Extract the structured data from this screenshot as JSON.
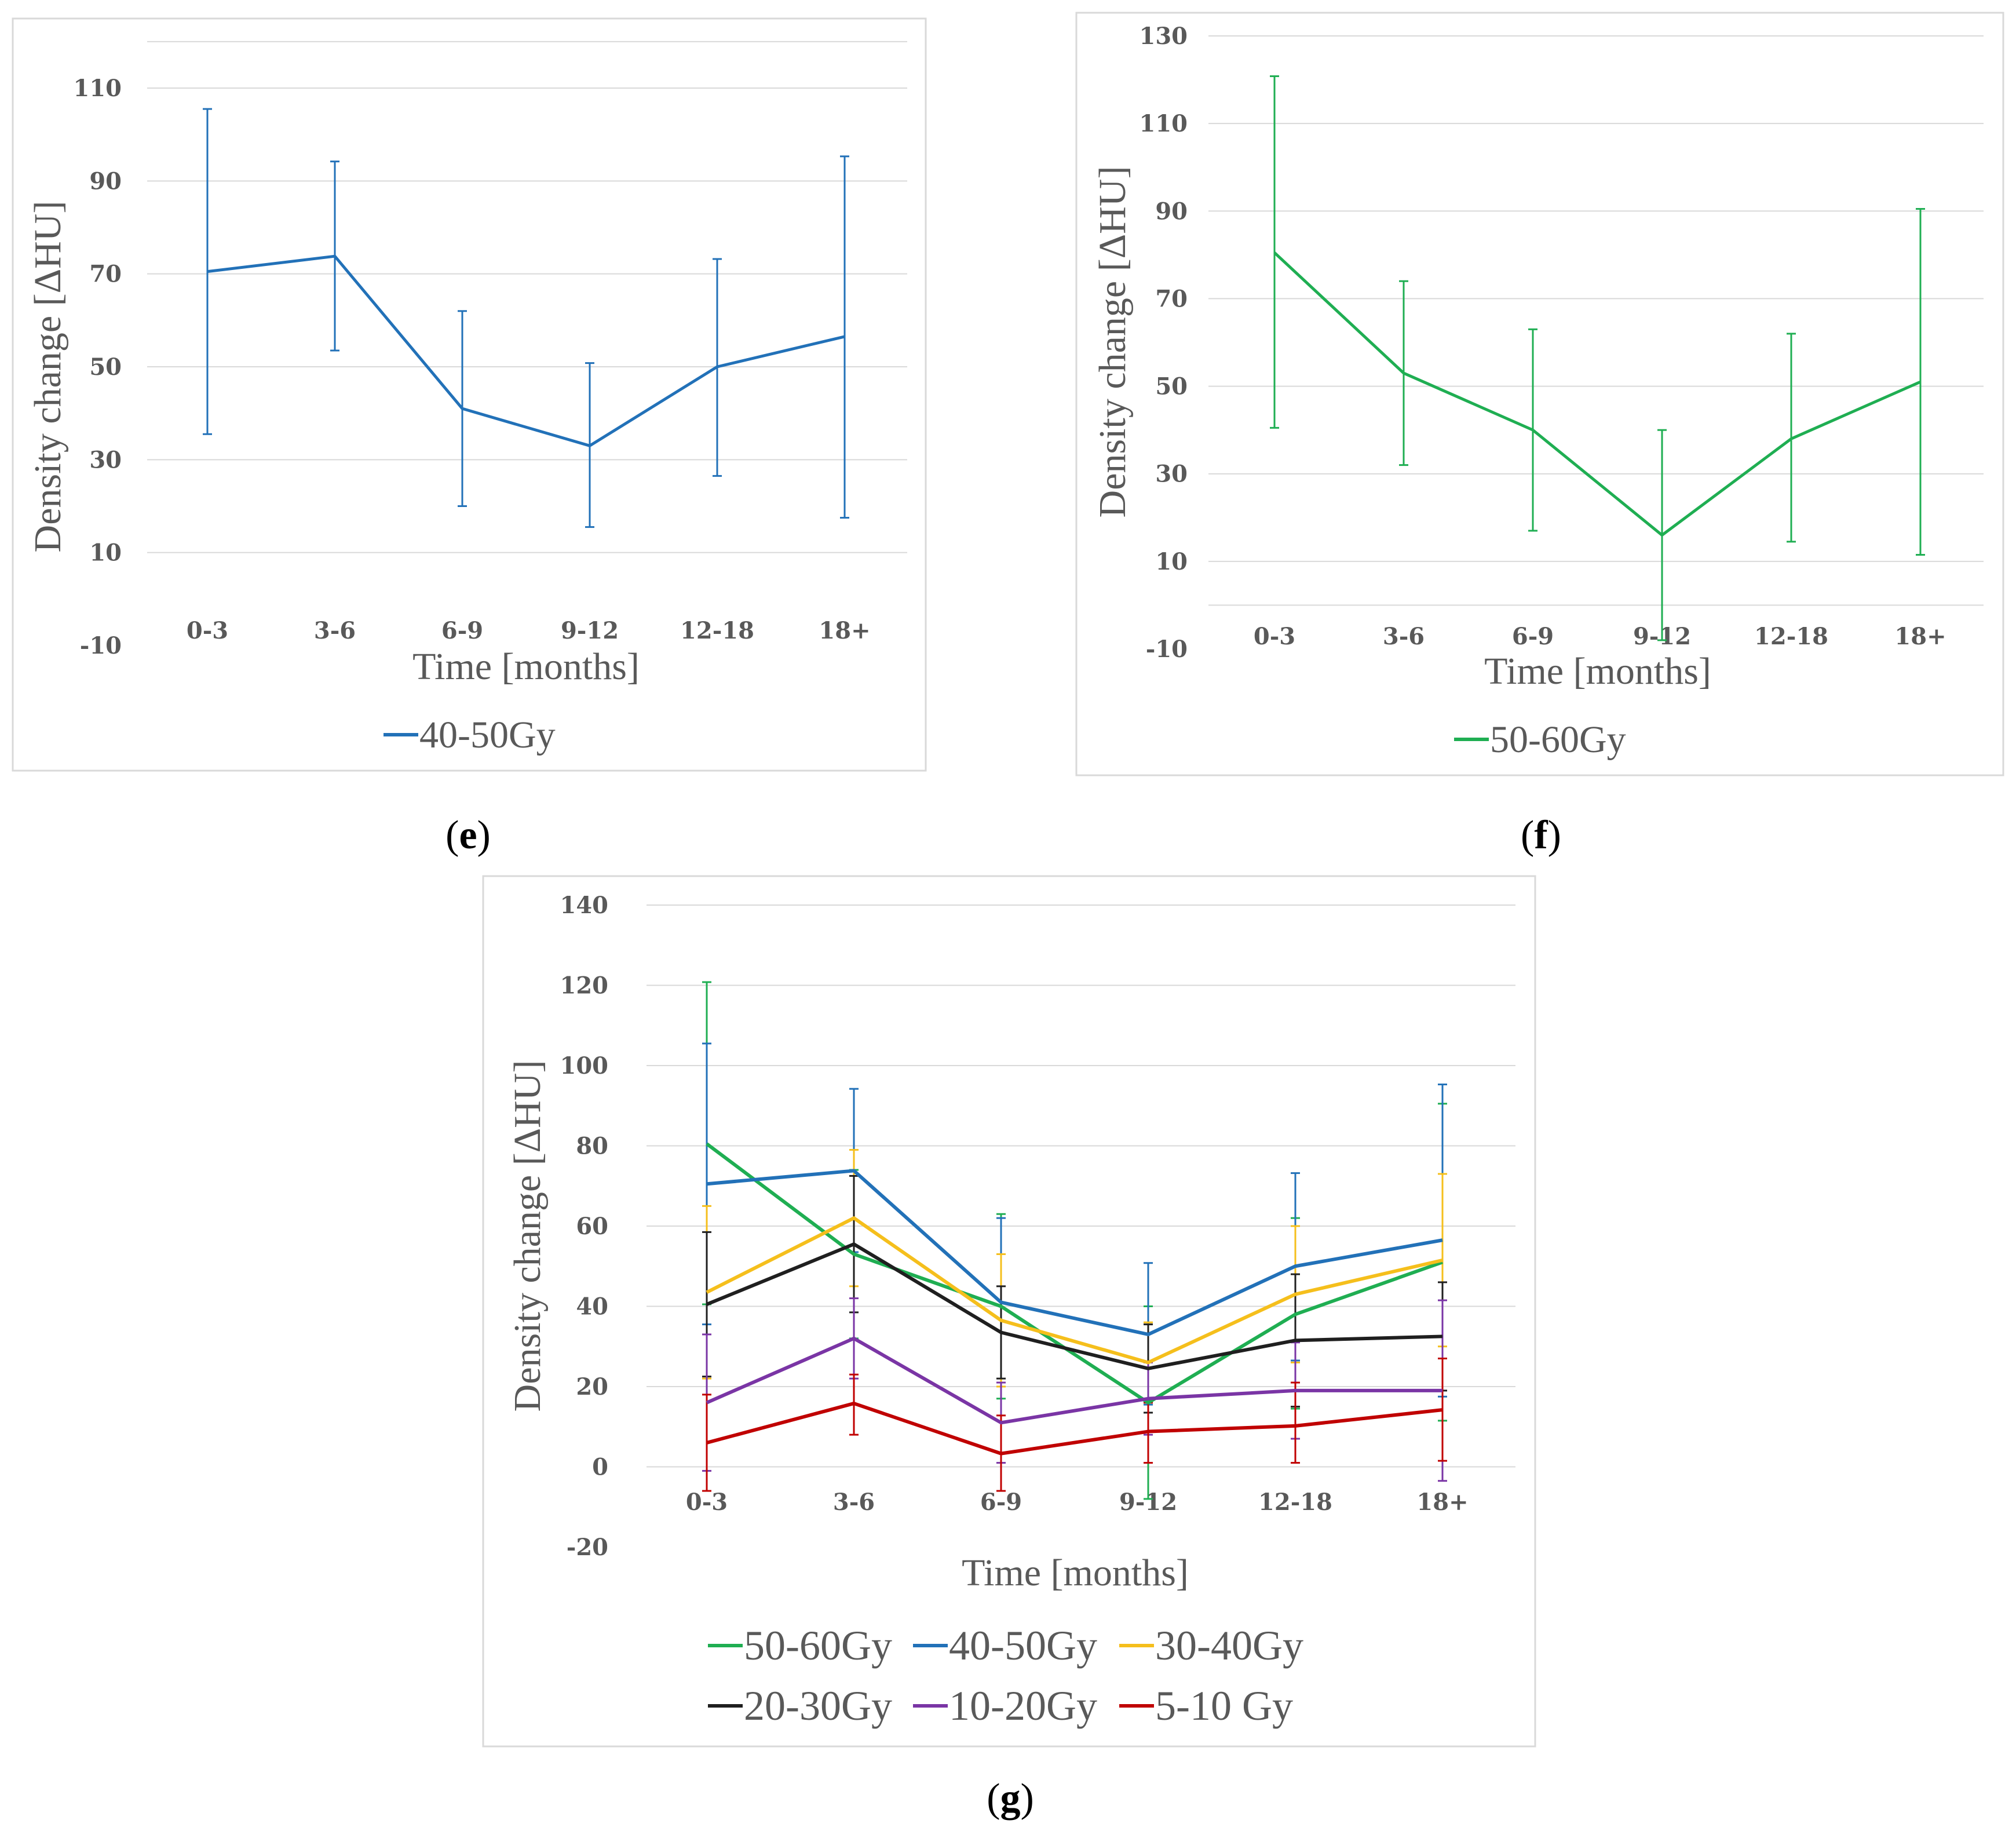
{
  "chart_data": [
    {
      "id": "e",
      "type": "line",
      "panel_label": {
        "open": "(",
        "letter": "e",
        "close": ")"
      },
      "categories": [
        "0-3",
        "3-6",
        "6-9",
        "9-12",
        "12-18",
        "18+"
      ],
      "yticks": [
        110,
        90,
        70,
        50,
        30,
        10,
        -10
      ],
      "ylim": [
        -10,
        120
      ],
      "xlabel": "Time [months]",
      "ylabel": "Density change [ΔHU]",
      "grid": true,
      "legend_position": "bottom",
      "series": [
        {
          "name": "40-50Gy",
          "color": "#2271b8",
          "values": [
            70.5,
            73.8,
            41.0,
            33.0,
            50.0,
            56.5
          ],
          "err_low": [
            35.5,
            53.5,
            20.0,
            15.5,
            26.5,
            17.5
          ],
          "err_high": [
            105.5,
            94.2,
            62.0,
            50.8,
            73.2,
            95.3
          ]
        }
      ]
    },
    {
      "id": "f",
      "type": "line",
      "panel_label": {
        "open": "(",
        "letter": "f",
        "close": ")"
      },
      "categories": [
        "0-3",
        "3-6",
        "6-9",
        "9-12",
        "12-18",
        "18+"
      ],
      "yticks": [
        130,
        110,
        90,
        70,
        50,
        30,
        10,
        -10
      ],
      "ylim": [
        -10,
        130
      ],
      "xlabel": "Time [months]",
      "ylabel": "Density change [ΔHU]",
      "grid": true,
      "legend_position": "bottom",
      "series": [
        {
          "name": "50-60Gy",
          "color": "#1fae52",
          "values": [
            80.5,
            53.0,
            40.0,
            16.0,
            38.0,
            51.0
          ],
          "err_low": [
            40.5,
            32.0,
            17.0,
            -8.0,
            14.5,
            11.5
          ],
          "err_high": [
            120.8,
            74.0,
            63.0,
            40.0,
            62.0,
            90.5
          ]
        }
      ]
    },
    {
      "id": "g",
      "type": "line",
      "panel_label": {
        "open": "(",
        "letter": "g",
        "close": ")"
      },
      "categories": [
        "0-3",
        "3-6",
        "6-9",
        "9-12",
        "12-18",
        "18+"
      ],
      "yticks": [
        140,
        120,
        100,
        80,
        60,
        40,
        20,
        0,
        -20
      ],
      "ylim": [
        -20,
        140
      ],
      "xlabel": "Time [months]",
      "ylabel": "Density change [ΔHU]",
      "grid": true,
      "legend_position": "bottom",
      "series": [
        {
          "name": "50-60Gy",
          "color": "#1fae52",
          "values": [
            80.5,
            53.0,
            40.0,
            16.0,
            38.0,
            51.0
          ],
          "err_low": [
            40.5,
            32.0,
            17.0,
            -8.0,
            14.5,
            11.5
          ],
          "err_high": [
            120.8,
            74.0,
            63.0,
            40.0,
            62.0,
            90.5
          ]
        },
        {
          "name": "40-50Gy",
          "color": "#2271b8",
          "values": [
            70.5,
            73.8,
            41.0,
            33.0,
            50.0,
            56.5
          ],
          "err_low": [
            35.5,
            53.5,
            20.0,
            15.5,
            26.5,
            17.5
          ],
          "err_high": [
            105.5,
            94.2,
            62.0,
            50.8,
            73.2,
            95.3
          ]
        },
        {
          "name": "30-40Gy",
          "color": "#f5bf1c",
          "values": [
            43.5,
            62.0,
            36.5,
            26.0,
            43.0,
            51.5
          ],
          "err_low": [
            22.0,
            45.0,
            20.0,
            16.0,
            26.0,
            30.0
          ],
          "err_high": [
            65.0,
            79.0,
            53.0,
            36.0,
            60.0,
            73.0
          ]
        },
        {
          "name": "20-30Gy",
          "color": "#1f1f1f",
          "values": [
            40.5,
            55.5,
            33.5,
            24.5,
            31.5,
            32.5
          ],
          "err_low": [
            22.5,
            38.5,
            22.0,
            13.5,
            15.0,
            19.0
          ],
          "err_high": [
            58.5,
            72.5,
            45.0,
            35.5,
            48.0,
            46.0
          ]
        },
        {
          "name": "10-20Gy",
          "color": "#7a35a5",
          "values": [
            16.0,
            32.0,
            11.0,
            17.0,
            19.0,
            19.0
          ],
          "err_low": [
            -1.0,
            22.0,
            1.0,
            8.0,
            7.0,
            -3.5
          ],
          "err_high": [
            33.0,
            42.0,
            21.0,
            26.0,
            31.0,
            41.5
          ]
        },
        {
          "name": "5-10 Gy",
          "color": "#c00000",
          "values": [
            6.0,
            15.8,
            3.3,
            8.8,
            10.2,
            14.2
          ],
          "err_low": [
            -6.0,
            8.0,
            -6.0,
            1.0,
            1.0,
            1.5
          ],
          "err_high": [
            18.0,
            23.0,
            12.8,
            16.0,
            21.0,
            27.0
          ]
        }
      ]
    }
  ]
}
